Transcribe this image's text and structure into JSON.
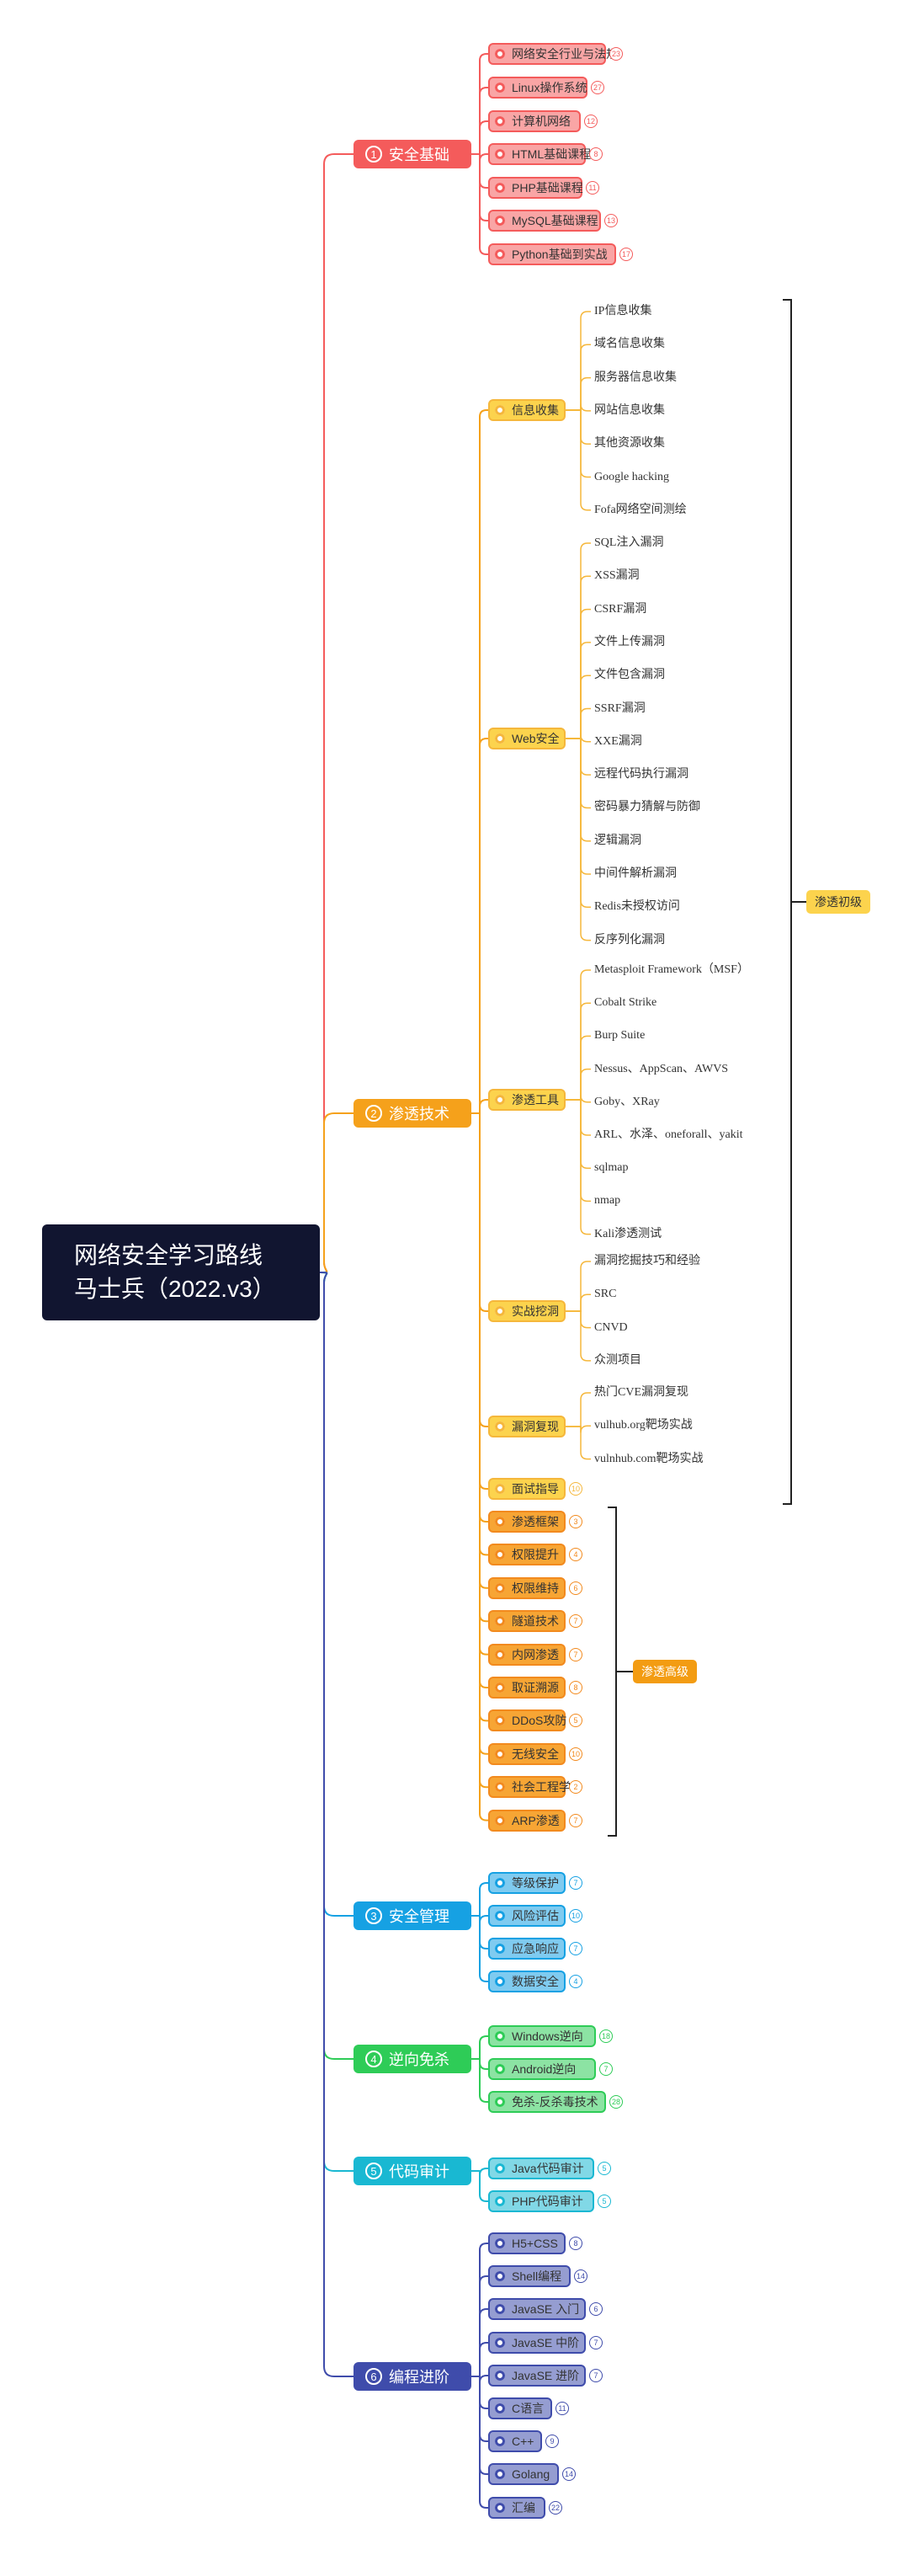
{
  "root": {
    "line1": "网络安全学习路线",
    "line2": "马士兵（2022.v3）"
  },
  "categories": [
    {
      "num": "1",
      "label": "安全基础",
      "color": "#f45b5b",
      "children": [
        {
          "label": "网络安全行业与法规",
          "badge": "23"
        },
        {
          "label": "Linux操作系统",
          "badge": "27"
        },
        {
          "label": "计算机网络",
          "badge": "12"
        },
        {
          "label": "HTML基础课程",
          "badge": "8"
        },
        {
          "label": "PHP基础课程",
          "badge": "11"
        },
        {
          "label": "MySQL基础课程",
          "badge": "13"
        },
        {
          "label": "Python基础到实战",
          "badge": "17"
        }
      ]
    },
    {
      "num": "2",
      "label": "渗透技术",
      "color": "#f5a11b",
      "groups": [
        {
          "label": "信息收集",
          "items": [
            "IP信息收集",
            "域名信息收集",
            "服务器信息收集",
            "网站信息收集",
            "其他资源收集",
            "Google hacking",
            "Fofa网络空间测绘"
          ]
        },
        {
          "label": "Web安全",
          "items": [
            "SQL注入漏洞",
            "XSS漏洞",
            "CSRF漏洞",
            "文件上传漏洞",
            "文件包含漏洞",
            "SSRF漏洞",
            "XXE漏洞",
            "远程代码执行漏洞",
            "密码暴力猜解与防御",
            "逻辑漏洞",
            "中间件解析漏洞",
            "Redis未授权访问",
            "反序列化漏洞"
          ]
        },
        {
          "label": "渗透工具",
          "items": [
            "Metasploit Framework（MSF）",
            "Cobalt Strike",
            "Burp Suite",
            "Nessus、AppScan、AWVS",
            "Goby、XRay",
            "ARL、水泽、oneforall、yakit",
            "sqlmap",
            "nmap",
            "Kali渗透测试"
          ]
        },
        {
          "label": "实战挖洞",
          "items": [
            "漏洞挖掘技巧和经验",
            "SRC",
            "CNVD",
            "众测项目"
          ]
        },
        {
          "label": "漏洞复现",
          "items": [
            "热门CVE漏洞复现",
            "vulhub.org靶场实战",
            "vulnhub.com靶场实战"
          ]
        }
      ],
      "interview": {
        "label": "面试指导",
        "badge": "10"
      },
      "advanced": [
        {
          "label": "渗透框架",
          "badge": "3"
        },
        {
          "label": "权限提升",
          "badge": "4"
        },
        {
          "label": "权限维持",
          "badge": "6"
        },
        {
          "label": "隧道技术",
          "badge": "7"
        },
        {
          "label": "内网渗透",
          "badge": "7"
        },
        {
          "label": "取证溯源",
          "badge": "8"
        },
        {
          "label": "DDoS攻防",
          "badge": "5"
        },
        {
          "label": "无线安全",
          "badge": "10"
        },
        {
          "label": "社会工程学",
          "badge": "2"
        },
        {
          "label": "ARP渗透",
          "badge": "7"
        }
      ],
      "tag_basic": "渗透初级",
      "tag_advanced": "渗透高级"
    },
    {
      "num": "3",
      "label": "安全管理",
      "color": "#16a1e3",
      "children": [
        {
          "label": "等级保护",
          "badge": "7"
        },
        {
          "label": "风险评估",
          "badge": "10"
        },
        {
          "label": "应急响应",
          "badge": "7"
        },
        {
          "label": "数据安全",
          "badge": "4"
        }
      ]
    },
    {
      "num": "4",
      "label": "逆向免杀",
      "color": "#2ecc57",
      "children": [
        {
          "label": "Windows逆向",
          "badge": "18"
        },
        {
          "label": "Android逆向",
          "badge": "7"
        },
        {
          "label": "免杀-反杀毒技术",
          "badge": "28"
        }
      ]
    },
    {
      "num": "5",
      "label": "代码审计",
      "color": "#19b8d2",
      "children": [
        {
          "label": "Java代码审计",
          "badge": "5"
        },
        {
          "label": "PHP代码审计",
          "badge": "5"
        }
      ]
    },
    {
      "num": "6",
      "label": "编程进阶",
      "color": "#3f4cab",
      "children": [
        {
          "label": "H5+CSS",
          "badge": "8"
        },
        {
          "label": "Shell编程",
          "badge": "14"
        },
        {
          "label": "JavaSE 入门",
          "badge": "6"
        },
        {
          "label": "JavaSE 中阶",
          "badge": "7"
        },
        {
          "label": "JavaSE 进阶",
          "badge": "7"
        },
        {
          "label": "C语言",
          "badge": "11"
        },
        {
          "label": "C++",
          "badge": "9"
        },
        {
          "label": "Golang",
          "badge": "14"
        },
        {
          "label": "汇编",
          "badge": "22"
        }
      ]
    }
  ]
}
